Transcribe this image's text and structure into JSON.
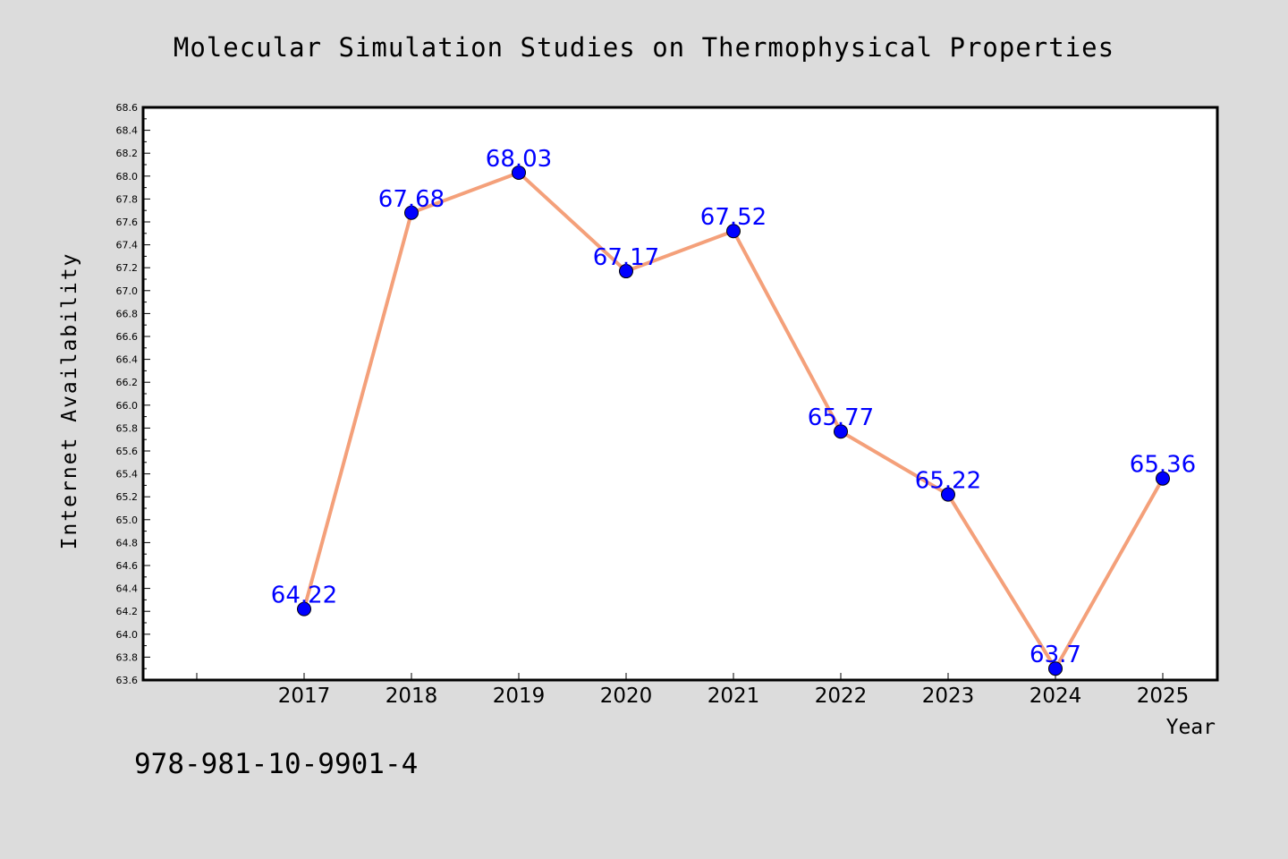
{
  "chart_data": {
    "type": "line",
    "title": "Molecular Simulation Studies on Thermophysical Properties",
    "xlabel": "Year",
    "ylabel": "Internet Availability",
    "categories": [
      "2017",
      "2018",
      "2019",
      "2020",
      "2021",
      "2022",
      "2023",
      "2024",
      "2025"
    ],
    "series": [
      {
        "values": [
          64.22,
          67.68,
          68.03,
          67.17,
          67.52,
          65.77,
          65.22,
          63.7,
          65.36
        ],
        "data_labels": [
          "64.22",
          "67.68",
          "68.03",
          "67.17",
          "67.52",
          "65.77",
          "65.22",
          "63.7",
          "65.36"
        ],
        "line_color": "#f4a07a",
        "marker_color": "#0000ff"
      }
    ],
    "ylim": [
      63.6,
      68.6
    ],
    "ytick_labels": [
      "63.6",
      "63.8",
      "64.0",
      "64.2",
      "64.4",
      "64.6",
      "64.8",
      "65.0",
      "65.2",
      "65.4",
      "65.6",
      "65.8",
      "66.0",
      "66.2",
      "66.4",
      "66.6",
      "66.8",
      "67.0",
      "67.2",
      "67.4",
      "67.6",
      "67.8",
      "68.0",
      "68.2",
      "68.4",
      "68.6"
    ],
    "grid": false,
    "legend": "none"
  },
  "footer": {
    "isbn": "978-981-10-9901-4"
  },
  "colors": {
    "background": "#dcdcdc",
    "plot_background": "#ffffff",
    "line": "#f4a07a",
    "marker": "#0000ff",
    "data_label": "#0000ff"
  }
}
